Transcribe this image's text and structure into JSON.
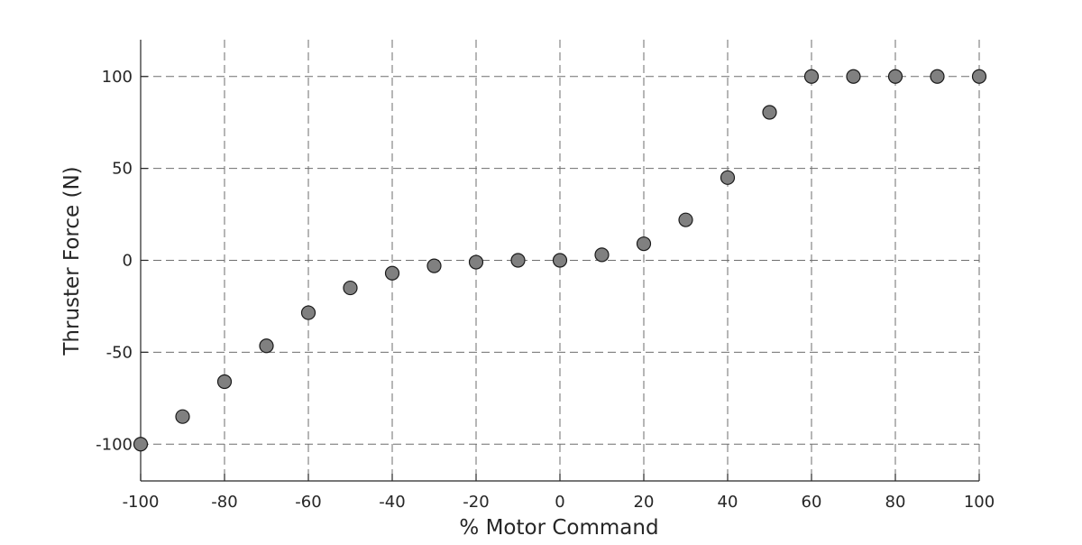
{
  "colors": {
    "marker_fill": "#808080",
    "marker_edge": "#1a1a1a",
    "grid": "#6e6e6e",
    "axis": "#262626"
  },
  "chart_data": {
    "type": "scatter",
    "title": "",
    "xlabel": "% Motor Command",
    "ylabel": "Thruster Force (N)",
    "xlim": [
      -100,
      100
    ],
    "ylim": [
      -120,
      120
    ],
    "grid": true,
    "grid_style": "dashed",
    "x_ticks": [
      -100,
      -80,
      -60,
      -40,
      -20,
      0,
      20,
      40,
      60,
      80,
      100
    ],
    "x_tick_labels": [
      "-100",
      "-80",
      "-60",
      "-40",
      "-20",
      "0",
      "20",
      "40",
      "60",
      "80",
      "100"
    ],
    "y_ticks": [
      -100,
      -50,
      0,
      50,
      100
    ],
    "y_tick_labels": [
      "-100",
      "-50",
      "0",
      "50",
      "100"
    ],
    "x": [
      -100,
      -90,
      -80,
      -70,
      -60,
      -50,
      -40,
      -30,
      -20,
      -10,
      0,
      10,
      20,
      30,
      40,
      50,
      60,
      70,
      80,
      90,
      100
    ],
    "y": [
      -100,
      -85,
      -66,
      -46.5,
      -28.5,
      -15,
      -7,
      -3,
      -1,
      0,
      0,
      3,
      9,
      22,
      45,
      80.5,
      100,
      100,
      100,
      100,
      100
    ]
  }
}
